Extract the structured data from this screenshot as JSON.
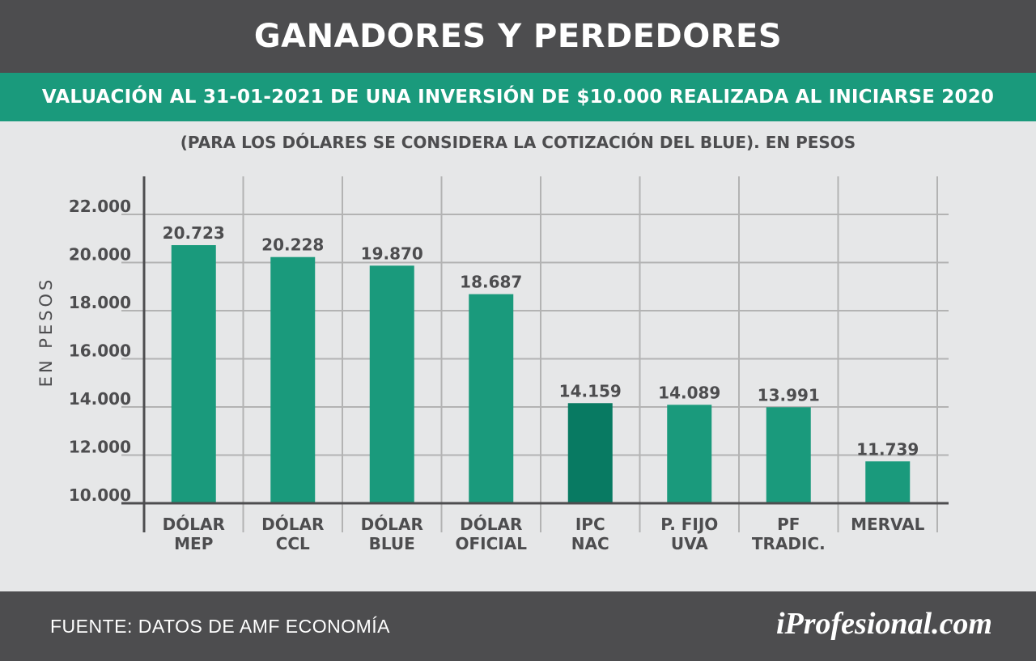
{
  "header": {
    "title": "GANADORES Y PERDEDORES",
    "subtitle": "VALUACIÓN AL 31-01-2021 DE UNA INVERSIÓN DE $10.000 REALIZADA AL INICIARSE 2020",
    "note": "(PARA LOS DÓLARES SE CONSIDERA LA COTIZACIÓN DEL BLUE). EN PESOS"
  },
  "footer": {
    "source": "FUENTE: DATOS DE AMF ECONOMÍA",
    "brand": "iProfesional.com"
  },
  "colors": {
    "bar": "#1a9a7c",
    "bar_highlight": "#087a62",
    "header_bg": "#4d4d4f",
    "band_bg": "#1a9a7c",
    "grid": "#b3b3b3",
    "text": "#4d4d4f"
  },
  "chart_data": {
    "type": "bar",
    "ylabel": "EN PESOS",
    "ylim": [
      10000,
      23000
    ],
    "yticks": [
      10000,
      12000,
      14000,
      16000,
      18000,
      20000,
      22000
    ],
    "ytick_labels": [
      "10.000",
      "12.000",
      "14.000",
      "16.000",
      "18.000",
      "20.000",
      "22.000"
    ],
    "grid": true,
    "categories": [
      [
        "DÓLAR",
        "MEP"
      ],
      [
        "DÓLAR",
        "CCL"
      ],
      [
        "DÓLAR",
        "BLUE"
      ],
      [
        "DÓLAR",
        "OFICIAL"
      ],
      [
        "IPC",
        "NAC"
      ],
      [
        "P.  FIJO",
        "UVA"
      ],
      [
        "PF",
        "TRADIC."
      ],
      [
        "MERVAL"
      ]
    ],
    "values": [
      20723,
      20228,
      19870,
      18687,
      14159,
      14089,
      13991,
      11739
    ],
    "value_labels": [
      "20.723",
      "20.228",
      "19.870",
      "18.687",
      "14.159",
      "14.089",
      "13.991",
      "11.739"
    ],
    "highlight_index": 4
  }
}
